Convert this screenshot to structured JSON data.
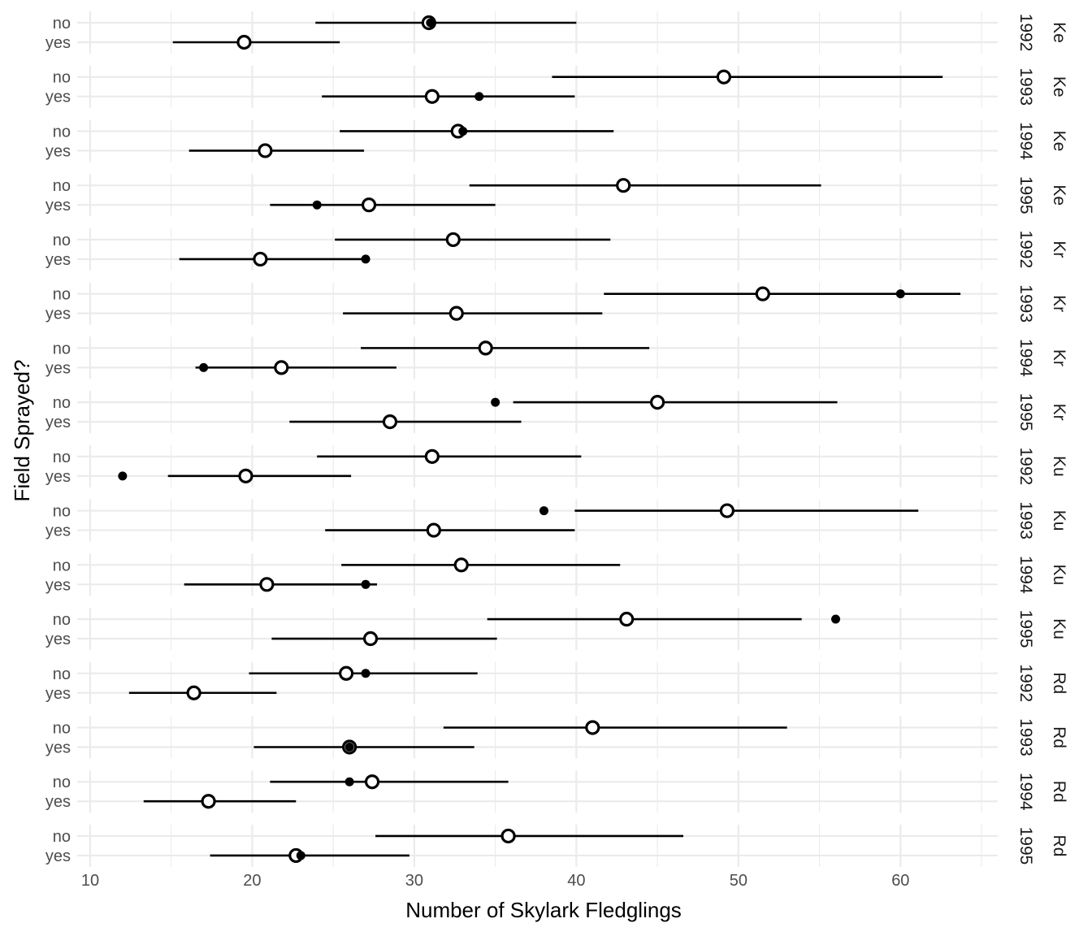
{
  "chart_data": {
    "type": "scatter",
    "xlabel": "Number of Skylark Fledglings",
    "ylabel": "Field Sprayed?",
    "xlim": [
      9.2,
      66
    ],
    "x_ticks": [
      10,
      20,
      30,
      40,
      50,
      60
    ],
    "y_categories": [
      "no",
      "yes"
    ],
    "grid": true,
    "panels": [
      {
        "year": "1992",
        "site": "Ke",
        "rows": [
          {
            "sprayed": "no",
            "estimate": 30.9,
            "lower": 23.9,
            "upper": 40.0,
            "observed": 31.0
          },
          {
            "sprayed": "yes",
            "estimate": 19.5,
            "lower": 15.1,
            "upper": 25.4,
            "observed": null
          }
        ]
      },
      {
        "year": "1993",
        "site": "Ke",
        "rows": [
          {
            "sprayed": "no",
            "estimate": 49.1,
            "lower": 38.5,
            "upper": 62.6,
            "observed": null
          },
          {
            "sprayed": "yes",
            "estimate": 31.1,
            "lower": 24.3,
            "upper": 39.9,
            "observed": 34.0
          }
        ]
      },
      {
        "year": "1994",
        "site": "Ke",
        "rows": [
          {
            "sprayed": "no",
            "estimate": 32.7,
            "lower": 25.4,
            "upper": 42.3,
            "observed": 33.0
          },
          {
            "sprayed": "yes",
            "estimate": 20.8,
            "lower": 16.1,
            "upper": 26.9,
            "observed": null
          }
        ]
      },
      {
        "year": "1995",
        "site": "Ke",
        "rows": [
          {
            "sprayed": "no",
            "estimate": 42.9,
            "lower": 33.4,
            "upper": 55.1,
            "observed": null
          },
          {
            "sprayed": "yes",
            "estimate": 27.2,
            "lower": 21.1,
            "upper": 35.0,
            "observed": 24.0
          }
        ]
      },
      {
        "year": "1992",
        "site": "Kr",
        "rows": [
          {
            "sprayed": "no",
            "estimate": 32.4,
            "lower": 25.1,
            "upper": 42.1,
            "observed": null
          },
          {
            "sprayed": "yes",
            "estimate": 20.5,
            "lower": 15.5,
            "upper": 27.0,
            "observed": 27.0
          }
        ]
      },
      {
        "year": "1993",
        "site": "Kr",
        "rows": [
          {
            "sprayed": "no",
            "estimate": 51.5,
            "lower": 41.7,
            "upper": 63.7,
            "observed": 60.0
          }
        ]
      },
      {
        "year": "1993",
        "site": "Kr",
        "rows_extra": true,
        "rows": [
          {
            "sprayed": "yes",
            "estimate": 32.6,
            "lower": 25.6,
            "upper": 41.6,
            "observed": null
          }
        ]
      },
      {
        "year": "1994",
        "site": "Kr",
        "rows": [
          {
            "sprayed": "no",
            "estimate": 34.4,
            "lower": 26.7,
            "upper": 44.5,
            "observed": null
          },
          {
            "sprayed": "yes",
            "estimate": 21.8,
            "lower": 16.5,
            "upper": 28.9,
            "observed": 17.0
          }
        ]
      },
      {
        "year": "1995",
        "site": "Kr",
        "rows": [
          {
            "sprayed": "no",
            "estimate": 45.0,
            "lower": 36.1,
            "upper": 56.1,
            "observed": 35.0
          },
          {
            "sprayed": "yes",
            "estimate": 28.5,
            "lower": 22.3,
            "upper": 36.6,
            "observed": null
          }
        ]
      },
      {
        "year": "1992",
        "site": "Ku",
        "rows": [
          {
            "sprayed": "no",
            "estimate": 31.1,
            "lower": 24.0,
            "upper": 40.3,
            "observed": null
          },
          {
            "sprayed": "yes",
            "estimate": 19.6,
            "lower": 14.8,
            "upper": 26.1,
            "observed": 12.0
          }
        ]
      },
      {
        "year": "1993",
        "site": "Ku",
        "rows": [
          {
            "sprayed": "no",
            "estimate": 49.3,
            "lower": 39.9,
            "upper": 61.1,
            "observed": 38.0
          },
          {
            "sprayed": "yes",
            "estimate": 31.2,
            "lower": 24.5,
            "upper": 39.9,
            "observed": null
          }
        ]
      },
      {
        "year": "1994",
        "site": "Ku",
        "rows": [
          {
            "sprayed": "no",
            "estimate": 32.9,
            "lower": 25.5,
            "upper": 42.7,
            "observed": null
          },
          {
            "sprayed": "yes",
            "estimate": 20.9,
            "lower": 15.8,
            "upper": 27.7,
            "observed": 27.0
          }
        ]
      },
      {
        "year": "1995",
        "site": "Ku",
        "rows": [
          {
            "sprayed": "no",
            "estimate": 43.1,
            "lower": 34.5,
            "upper": 53.9,
            "observed": 56.0
          },
          {
            "sprayed": "yes",
            "estimate": 27.3,
            "lower": 21.2,
            "upper": 35.1,
            "observed": null
          }
        ]
      },
      {
        "year": "1992",
        "site": "Rd",
        "rows": [
          {
            "sprayed": "no",
            "estimate": 25.8,
            "lower": 19.8,
            "upper": 33.9,
            "observed": 27.0
          },
          {
            "sprayed": "yes",
            "estimate": 16.4,
            "lower": 12.4,
            "upper": 21.5,
            "observed": null
          }
        ]
      },
      {
        "year": "1993",
        "site": "Rd",
        "rows": [
          {
            "sprayed": "no",
            "estimate": 41.0,
            "lower": 31.8,
            "upper": 53.0,
            "observed": null
          },
          {
            "sprayed": "yes",
            "estimate": 26.0,
            "lower": 20.1,
            "upper": 33.7,
            "observed": 26.0
          }
        ]
      },
      {
        "year": "1994",
        "site": "Rd",
        "rows": [
          {
            "sprayed": "no",
            "estimate": 27.4,
            "lower": 21.1,
            "upper": 35.8,
            "observed": 26.0
          },
          {
            "sprayed": "yes",
            "estimate": 17.3,
            "lower": 13.3,
            "upper": 22.7,
            "observed": null
          }
        ]
      },
      {
        "year": "1995",
        "site": "Rd",
        "rows": [
          {
            "sprayed": "no",
            "estimate": 35.8,
            "lower": 27.6,
            "upper": 46.6,
            "observed": null
          },
          {
            "sprayed": "yes",
            "estimate": 22.7,
            "lower": 17.4,
            "upper": 29.7,
            "observed": 23.0
          }
        ]
      }
    ]
  }
}
